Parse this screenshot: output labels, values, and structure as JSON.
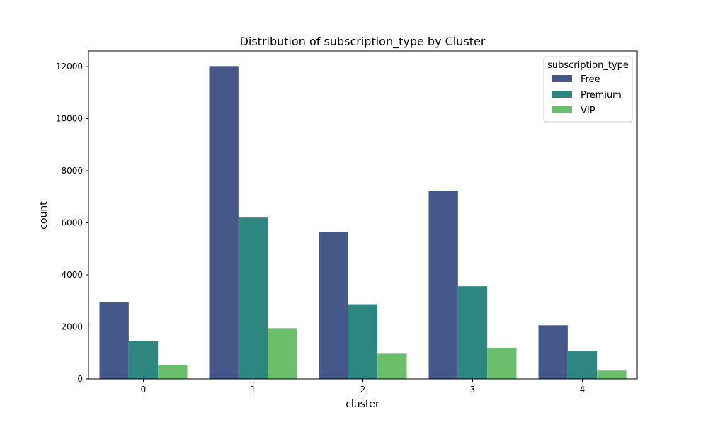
{
  "colors": {
    "Free": "#46588a",
    "Premium": "#2d8780",
    "VIP": "#6bbf6b"
  },
  "chart_data": {
    "type": "bar",
    "title": "Distribution of subscription_type by Cluster",
    "xlabel": "cluster",
    "ylabel": "count",
    "categories": [
      "0",
      "1",
      "2",
      "3",
      "4"
    ],
    "series": [
      {
        "name": "Free",
        "values": [
          2950,
          12020,
          5650,
          7240,
          2060
        ]
      },
      {
        "name": "Premium",
        "values": [
          1450,
          6200,
          2870,
          3560,
          1060
        ]
      },
      {
        "name": "VIP",
        "values": [
          530,
          1950,
          970,
          1200,
          320
        ]
      }
    ],
    "ylim": [
      0,
      12600
    ],
    "yticks": [
      0,
      2000,
      4000,
      6000,
      8000,
      10000,
      12000
    ],
    "grid": false,
    "legend": {
      "title": "subscription_type",
      "placement": "top-right"
    }
  }
}
